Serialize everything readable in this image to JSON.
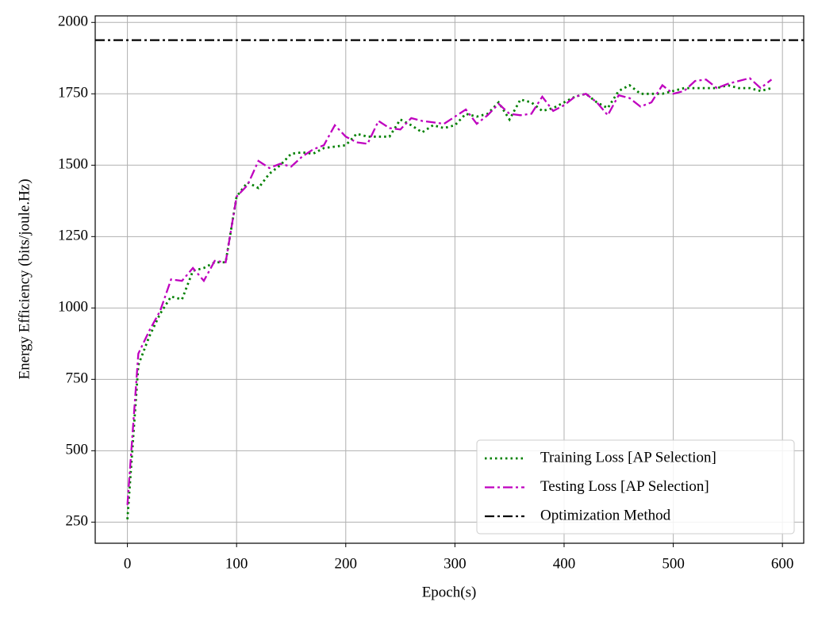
{
  "chart_data": {
    "type": "line",
    "xlabel": "Epoch(s)",
    "ylabel": "Energy Efficiency (bits/joule.Hz)",
    "x": [
      0,
      10,
      20,
      30,
      40,
      50,
      60,
      70,
      80,
      90,
      100,
      110,
      120,
      130,
      140,
      150,
      160,
      170,
      180,
      190,
      200,
      210,
      220,
      230,
      240,
      250,
      260,
      270,
      280,
      290,
      300,
      310,
      320,
      330,
      340,
      350,
      360,
      370,
      380,
      390,
      400,
      410,
      420,
      430,
      440,
      450,
      460,
      470,
      480,
      490,
      500,
      510,
      520,
      530,
      540,
      550,
      560,
      570,
      580,
      590
    ],
    "series": [
      {
        "name": "Training Loss [AP Selection]",
        "color": "#008000",
        "style": "dotted",
        "values": [
          260,
          800,
          900,
          980,
          1040,
          1030,
          1130,
          1140,
          1160,
          1160,
          1390,
          1440,
          1420,
          1470,
          1500,
          1540,
          1545,
          1540,
          1560,
          1565,
          1570,
          1610,
          1600,
          1600,
          1600,
          1660,
          1640,
          1615,
          1640,
          1630,
          1640,
          1680,
          1670,
          1680,
          1720,
          1660,
          1730,
          1720,
          1690,
          1700,
          1720,
          1740,
          1750,
          1720,
          1700,
          1760,
          1780,
          1750,
          1750,
          1750,
          1760,
          1770,
          1770,
          1770,
          1770,
          1780,
          1770,
          1770,
          1760,
          1770
        ]
      },
      {
        "name": "Testing Loss [AP Selection]",
        "color": "#bf00bf",
        "style": "dashdot",
        "values": [
          310,
          840,
          920,
          990,
          1100,
          1095,
          1140,
          1095,
          1165,
          1160,
          1390,
          1430,
          1515,
          1490,
          1505,
          1495,
          1530,
          1555,
          1570,
          1640,
          1600,
          1580,
          1575,
          1655,
          1630,
          1625,
          1665,
          1655,
          1650,
          1645,
          1670,
          1695,
          1645,
          1675,
          1715,
          1680,
          1675,
          1680,
          1740,
          1690,
          1710,
          1740,
          1750,
          1720,
          1675,
          1745,
          1735,
          1705,
          1720,
          1780,
          1750,
          1760,
          1795,
          1800,
          1770,
          1785,
          1795,
          1805,
          1770,
          1800
        ]
      }
    ],
    "reference_lines": [
      {
        "name": "Optimization Method",
        "value": 1938,
        "color": "#000000",
        "style": "dashdot"
      }
    ],
    "xlim": [
      -29.5,
      619.5
    ],
    "xticks": [
      0,
      100,
      200,
      300,
      400,
      500,
      600
    ],
    "ylim": [
      176,
      2023
    ],
    "yticks": [
      250,
      500,
      750,
      1000,
      1250,
      1500,
      1750,
      2000
    ],
    "grid": true,
    "legend": "lower right"
  }
}
